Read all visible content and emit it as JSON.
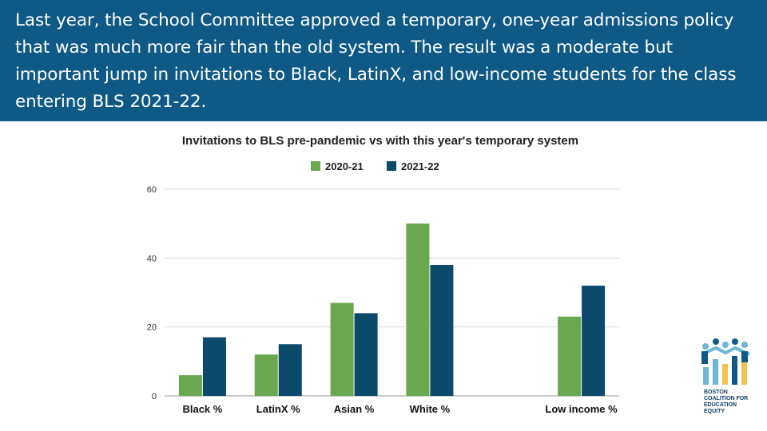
{
  "banner": {
    "text": "Last year, the School Committee approved a temporary, one-year admissions policy that was much more fair than the old system. The result was a moderate but important jump in invitations to Black, LatinX, and low-income students for the class entering BLS 2021-22."
  },
  "logo": {
    "lines": [
      "BOSTON",
      "COALITION FOR",
      "EDUCATION",
      "EQUITY"
    ]
  },
  "chart_data": {
    "type": "bar",
    "title": "Invitations to BLS pre-pandemic vs with this year's temporary system",
    "categories": [
      "Black %",
      "LatinX %",
      "Asian %",
      "White %",
      "",
      "Low income %"
    ],
    "series": [
      {
        "name": "2020-21",
        "color": "#6aa84f",
        "values": [
          6,
          12,
          27,
          50,
          null,
          23
        ]
      },
      {
        "name": "2021-22",
        "color": "#0b4a6b",
        "values": [
          17,
          15,
          24,
          38,
          null,
          32
        ]
      }
    ],
    "yticks": [
      0,
      20,
      40,
      60
    ],
    "ylim": [
      0,
      60
    ],
    "grid": true,
    "legend": "top-center",
    "xlabel": "",
    "ylabel": ""
  }
}
